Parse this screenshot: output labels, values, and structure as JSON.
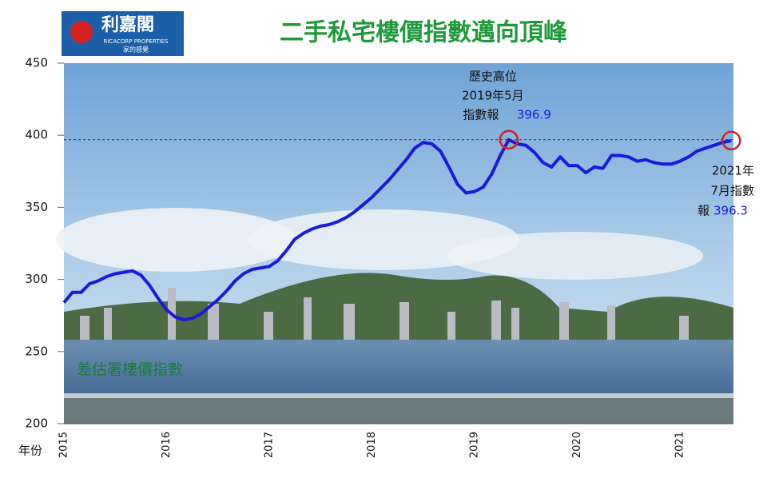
{
  "logo": {
    "name": "利嘉閣",
    "english": "RICACORP PROPERTIES",
    "slogan": "家的感覺"
  },
  "chart_data": {
    "type": "line",
    "title": "二手私宅樓價指數邁向頂峰",
    "x_label": "年份",
    "categories": [
      "2015",
      null,
      null,
      null,
      null,
      null,
      null,
      null,
      null,
      null,
      null,
      null,
      "2016",
      null,
      null,
      null,
      null,
      null,
      null,
      null,
      null,
      null,
      null,
      null,
      "2017",
      null,
      null,
      null,
      null,
      null,
      null,
      null,
      null,
      null,
      null,
      null,
      "2018",
      null,
      null,
      null,
      null,
      null,
      null,
      null,
      null,
      null,
      null,
      null,
      "2019",
      null,
      null,
      null,
      null,
      null,
      null,
      null,
      null,
      null,
      null,
      null,
      "2020",
      null,
      null,
      null,
      null,
      null,
      null,
      null,
      null,
      null,
      null,
      null,
      "2021",
      null,
      null,
      null,
      null,
      null,
      null
    ],
    "series": [
      {
        "name": "差估署樓價指數",
        "color": "#1a1adb",
        "values": [
          284,
          291,
          291,
          297,
          299,
          302,
          304,
          305,
          306,
          303,
          296,
          287,
          279,
          274,
          272,
          273,
          276,
          281,
          286,
          292,
          299,
          304,
          307,
          308,
          309,
          313,
          320,
          328,
          332,
          335,
          337,
          338,
          340,
          343,
          347,
          352,
          357,
          363,
          369,
          376,
          383,
          391,
          395,
          394,
          389,
          378,
          366,
          360,
          361,
          364,
          373,
          386,
          396.9,
          394,
          393,
          388,
          381,
          378,
          385,
          379,
          379,
          374,
          378,
          377,
          386,
          386,
          385,
          382,
          383,
          381,
          380,
          380,
          382,
          385,
          389,
          391,
          393,
          395,
          396.3
        ]
      }
    ],
    "ylim": [
      200,
      450
    ],
    "yticks": [
      200,
      250,
      300,
      350,
      400,
      450
    ],
    "annotations": {
      "peak": [
        "歷史高位",
        "2019年5月",
        "指數報"
      ],
      "latest": [
        "2021年",
        "7月指數",
        "報"
      ]
    },
    "highlight_color": "#d42020",
    "legend_color": "#1f7a3a"
  }
}
